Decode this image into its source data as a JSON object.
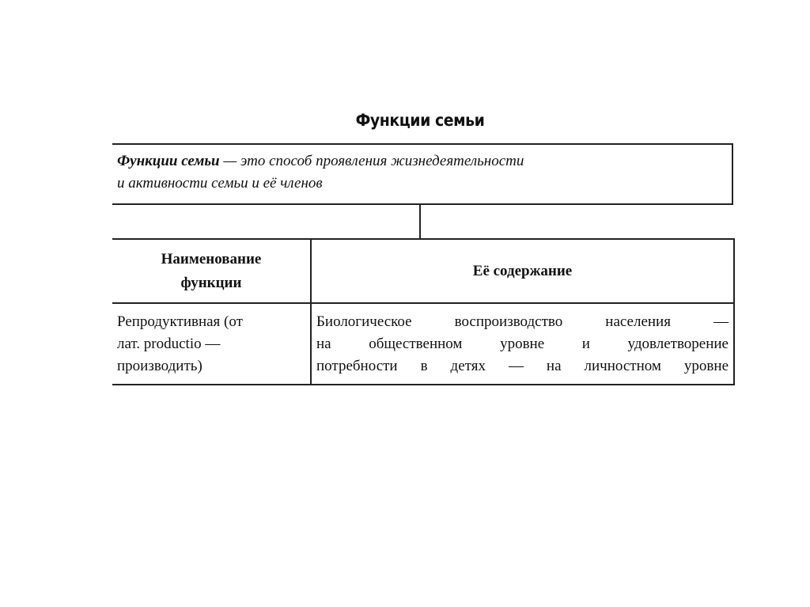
{
  "title": "Функции семьи",
  "definition": {
    "term": "Функции семьи",
    "line1_rest": " — это способ проявления жизнедеятельности",
    "line2": "и активности семьи и её членов"
  },
  "table": {
    "headers": [
      "Наименование функции",
      "Её содержание"
    ],
    "header_lines": {
      "col1": [
        "Наименование",
        "функции"
      ]
    },
    "rows": [
      {
        "name_lines": [
          "Репродуктивная (от",
          "лат. productio —",
          "производить)"
        ],
        "content_lines": [
          "Биологическое воспроизводство населения —",
          "на общественном уровне и удовлетворение",
          "потребности в детях — на личностном уровне"
        ]
      }
    ]
  }
}
